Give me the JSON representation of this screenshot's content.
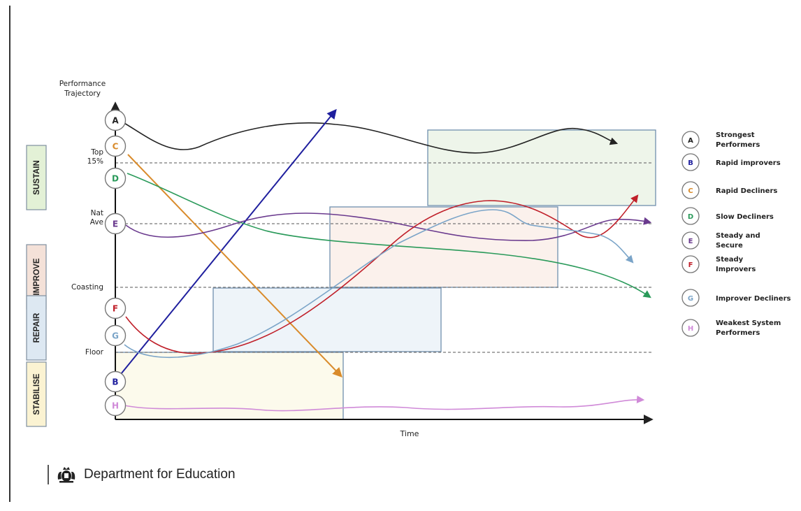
{
  "axis": {
    "y_label_line1": "Performance",
    "y_label_line2": "Trajectory",
    "x_label": "Time"
  },
  "levels": [
    {
      "key": "top",
      "label_lines": [
        "Top",
        "15%"
      ]
    },
    {
      "key": "nat",
      "label_lines": [
        "Nat",
        "Ave"
      ]
    },
    {
      "key": "coasting",
      "label_lines": [
        "Coasting"
      ]
    },
    {
      "key": "floor",
      "label_lines": [
        "Floor"
      ]
    }
  ],
  "stages": [
    {
      "key": "sustain",
      "label": "SUSTAIN",
      "fill": "#e3f1d6"
    },
    {
      "key": "improve",
      "label": "IMPROVE",
      "fill": "#f4e1d8"
    },
    {
      "key": "repair",
      "label": "REPAIR",
      "fill": "#dde8f2"
    },
    {
      "key": "stabilise",
      "label": "STABILISE",
      "fill": "#fbf3d2"
    }
  ],
  "zones": [
    {
      "key": "sustain-zone",
      "fill": "#eef5ea"
    },
    {
      "key": "improve-zone",
      "fill": "#fbf1ec"
    },
    {
      "key": "repair-zone",
      "fill": "#eef4f9"
    },
    {
      "key": "stabilise-zone",
      "fill": "#fcfaec"
    }
  ],
  "trajectories": [
    {
      "letter": "A",
      "name_lines": [
        "Strongest",
        "Performers"
      ],
      "color": "#222222"
    },
    {
      "letter": "B",
      "name_lines": [
        "Rapid improvers"
      ],
      "color": "#1f1f9e"
    },
    {
      "letter": "C",
      "name_lines": [
        "Rapid Decliners"
      ],
      "color": "#d98b2b"
    },
    {
      "letter": "D",
      "name_lines": [
        "Slow Decliners"
      ],
      "color": "#2a9a5a"
    },
    {
      "letter": "E",
      "name_lines": [
        "Steady and",
        "Secure"
      ],
      "color": "#6a3a8e"
    },
    {
      "letter": "F",
      "name_lines": [
        "Steady",
        "Improvers"
      ],
      "color": "#c0202a"
    },
    {
      "letter": "G",
      "name_lines": [
        "Improver Decliners"
      ],
      "color": "#7aa4c8"
    },
    {
      "letter": "H",
      "name_lines": [
        "Weakest System",
        "Performers"
      ],
      "color": "#d08ad8"
    }
  ],
  "footer": {
    "organisation": "Department for Education",
    "logo_icon": "royal-crest-icon"
  }
}
